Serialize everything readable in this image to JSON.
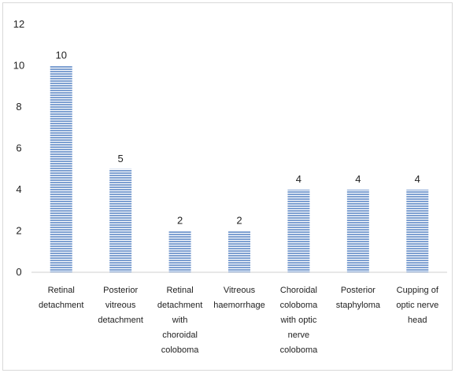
{
  "chart_data": {
    "type": "bar",
    "categories": [
      [
        "Retinal",
        "detachment"
      ],
      [
        "Posterior",
        "vitreous",
        "detachment"
      ],
      [
        "Retinal",
        "detachment",
        "with",
        "choroidal",
        "coloboma"
      ],
      [
        "Vitreous",
        "haemorrhage"
      ],
      [
        "Choroidal",
        "coloboma",
        "with optic",
        "nerve",
        "coloboma"
      ],
      [
        "Posterior",
        "staphyloma"
      ],
      [
        "Cupping of",
        "optic nerve",
        "head"
      ]
    ],
    "values": [
      10,
      5,
      2,
      2,
      4,
      4,
      4
    ],
    "data_labels": [
      "10",
      "5",
      "2",
      "2",
      "4",
      "4",
      "4"
    ],
    "y_ticks": [
      "0",
      "2",
      "4",
      "6",
      "8",
      "10",
      "12"
    ],
    "ylim": [
      0,
      12
    ],
    "grid": false,
    "legend": "none",
    "bar_color": "#7ea0d1",
    "bar_stripe_color": "#ffffff"
  }
}
